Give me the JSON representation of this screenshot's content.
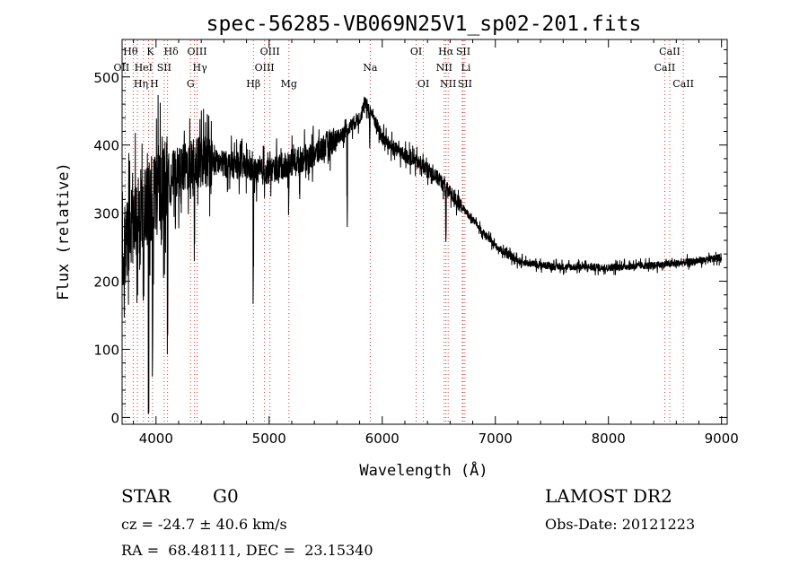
{
  "chart_data": {
    "type": "line",
    "title": "spec-56285-VB069N25V1_sp02-201.fits",
    "xlabel": "Wavelength (Å)",
    "ylabel": "Flux (relative)",
    "xlim": [
      3700,
      9050
    ],
    "ylim": [
      -10,
      555
    ],
    "xticks": [
      4000,
      5000,
      6000,
      7000,
      8000,
      9000
    ],
    "yticks": [
      0,
      100,
      200,
      300,
      400,
      500
    ],
    "grid": false,
    "series_color": "#000000",
    "line_marker_color": "#d23c3c",
    "spectrum_anchors": {
      "x": [
        3700,
        3800,
        3900,
        4000,
        4100,
        4200,
        4300,
        4400,
        4500,
        4600,
        4700,
        4800,
        4900,
        5000,
        5100,
        5200,
        5300,
        5400,
        5500,
        5600,
        5700,
        5800,
        5850,
        5900,
        6000,
        6100,
        6200,
        6300,
        6400,
        6500,
        6600,
        6700,
        6800,
        6900,
        7000,
        7100,
        7200,
        7300,
        7400,
        7500,
        7600,
        7700,
        7800,
        7900,
        8000,
        8100,
        8200,
        8300,
        8400,
        8500,
        8600,
        8700,
        8800,
        8900,
        9000
      ],
      "y": [
        250,
        280,
        310,
        330,
        350,
        360,
        370,
        375,
        375,
        372,
        370,
        368,
        360,
        362,
        368,
        375,
        380,
        385,
        400,
        410,
        425,
        440,
        460,
        450,
        410,
        395,
        385,
        375,
        365,
        350,
        330,
        310,
        290,
        270,
        252,
        240,
        230,
        226,
        224,
        222,
        221,
        221,
        221,
        220,
        220,
        221,
        222,
        223,
        223,
        225,
        226,
        228,
        230,
        232,
        235
      ]
    },
    "spectral_lines": [
      {
        "name": "OII",
        "x": 3727,
        "tier": 1,
        "dx": -4
      },
      {
        "name": "Hθ",
        "x": 3798,
        "tier": 0,
        "dx": -3
      },
      {
        "name": "Hη",
        "x": 3835,
        "tier": 2,
        "dx": 4
      },
      {
        "name": "HeI",
        "x": 3889,
        "tier": 1,
        "dx": 0
      },
      {
        "name": "K",
        "x": 3934,
        "tier": 0,
        "dx": 2
      },
      {
        "name": "H",
        "x": 3969,
        "tier": 2,
        "dx": 2
      },
      {
        "name": "SII",
        "x": 4072,
        "tier": 1,
        "dx": 0
      },
      {
        "name": "Hδ",
        "x": 4102,
        "tier": 0,
        "dx": 4
      },
      {
        "name": "G",
        "x": 4305,
        "tier": 2,
        "dx": 0
      },
      {
        "name": "Hγ",
        "x": 4340,
        "tier": 1,
        "dx": 6
      },
      {
        "name": "OIII",
        "x": 4363,
        "tier": 0,
        "dx": 0
      },
      {
        "name": "Hβ",
        "x": 4861,
        "tier": 2,
        "dx": 0
      },
      {
        "name": "OIII",
        "x": 4959,
        "tier": 1,
        "dx": 0
      },
      {
        "name": "OIII",
        "x": 5007,
        "tier": 0,
        "dx": 0
      },
      {
        "name": "Mg",
        "x": 5175,
        "tier": 2,
        "dx": 0
      },
      {
        "name": "Na",
        "x": 5894,
        "tier": 1,
        "dx": 0
      },
      {
        "name": "OI",
        "x": 6300,
        "tier": 0,
        "dx": 0
      },
      {
        "name": "OI",
        "x": 6364,
        "tier": 2,
        "dx": 0
      },
      {
        "name": "NII",
        "x": 6548,
        "tier": 1,
        "dx": 0
      },
      {
        "name": "Hα",
        "x": 6563,
        "tier": 0,
        "dx": 0
      },
      {
        "name": "NII",
        "x": 6583,
        "tier": 2,
        "dx": 0
      },
      {
        "name": "Li",
        "x": 6708,
        "tier": 1,
        "dx": 4
      },
      {
        "name": "SII",
        "x": 6716,
        "tier": 0,
        "dx": 0
      },
      {
        "name": "SII",
        "x": 6731,
        "tier": 2,
        "dx": 0
      },
      {
        "name": "CaII",
        "x": 8498,
        "tier": 1,
        "dx": 0
      },
      {
        "name": "CaII",
        "x": 8542,
        "tier": 0,
        "dx": 0
      },
      {
        "name": "CaII",
        "x": 8662,
        "tier": 2,
        "dx": 0
      }
    ]
  },
  "info": {
    "object_class": "STAR",
    "subclass": "G0",
    "survey": "LAMOST DR2",
    "cz": "cz = -24.7 ± 40.6 km/s",
    "obs_date": "Obs-Date: 20121223",
    "radec": "RA =  68.48111, DEC =  23.15340"
  }
}
